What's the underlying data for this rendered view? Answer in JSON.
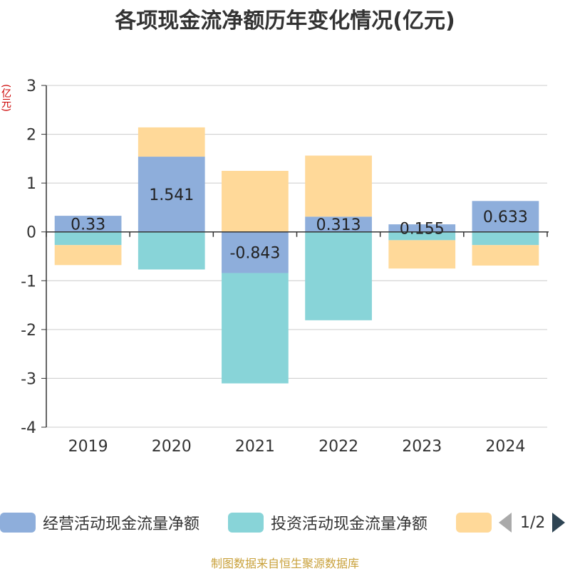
{
  "chart_data": {
    "type": "bar",
    "stacked": true,
    "title": "各项现金流净额历年变化情况(亿元)",
    "ylabel": "(亿元)",
    "ylim": [
      -4,
      3
    ],
    "yticks": [
      3,
      2,
      1,
      0,
      -1,
      -2,
      -3,
      -4
    ],
    "categories": [
      "2019",
      "2020",
      "2021",
      "2022",
      "2023",
      "2024"
    ],
    "series": [
      {
        "name": "经营活动现金流量净额",
        "color": "#8eaedb",
        "values": [
          0.33,
          1.541,
          -0.843,
          0.313,
          0.155,
          0.633
        ],
        "labels": [
          "0.33",
          "1.541",
          "-0.843",
          "0.313",
          "0.155",
          "0.633"
        ]
      },
      {
        "name": "投资活动现金流量净额",
        "color": "#88d4d8",
        "values": [
          -0.27,
          -0.77,
          -2.26,
          -1.81,
          -0.17,
          -0.27
        ]
      },
      {
        "name": "",
        "color": "#ffd999",
        "values": [
          -0.41,
          0.6,
          1.25,
          1.25,
          -0.58,
          -0.42
        ]
      }
    ],
    "grid": true,
    "legend": "bottom"
  },
  "legend": {
    "page": "1/2"
  },
  "source": "制图数据来自恒生聚源数据库"
}
